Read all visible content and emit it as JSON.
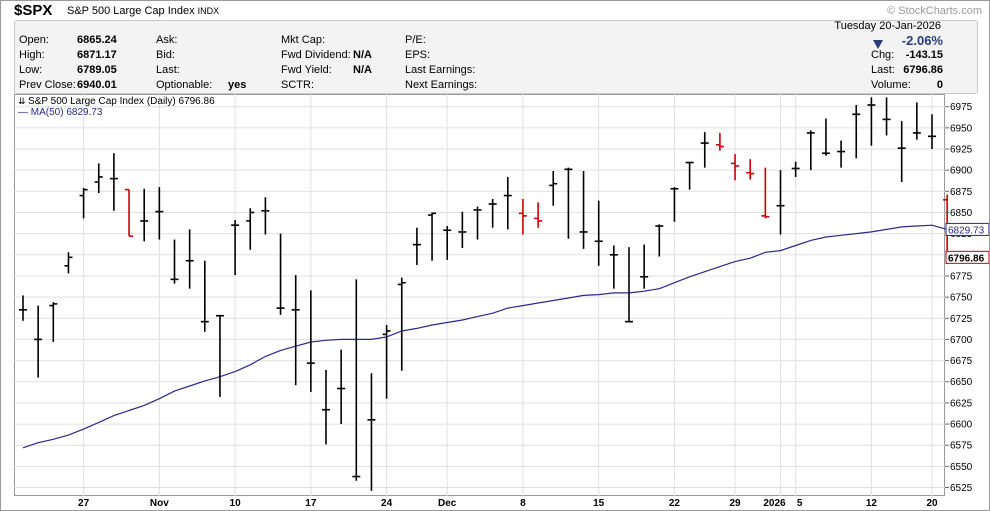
{
  "header": {
    "ticker": "$SPX",
    "company": "S&P 500 Large Cap Index",
    "exchange": "INDX",
    "watermark": "© StockCharts.com"
  },
  "info": {
    "open_label": "Open:",
    "open": "6865.24",
    "high_label": "High:",
    "high": "6871.17",
    "low_label": "Low:",
    "low": "6789.05",
    "prev_label": "Prev Close:",
    "prev": "6940.01",
    "ask_label": "Ask:",
    "bid_label": "Bid:",
    "last_label": "Last:",
    "optionable_label": "Optionable:",
    "optionable": "yes",
    "mktcap_label": "Mkt Cap:",
    "fwddiv_label": "Fwd Dividend:",
    "fwddiv": "N/A",
    "fwdyield_label": "Fwd Yield:",
    "fwdyield": "N/A",
    "sctr_label": "SCTR:",
    "pe_label": "P/E:",
    "eps_label": "EPS:",
    "lastearn_label": "Last Earnings:",
    "nextearn_label": "Next Earnings:",
    "date": "Tuesday  20-Jan-2026",
    "pct": "-2.06%",
    "chg_label": "Chg:",
    "chg": "-143.15",
    "last2_label": "Last:",
    "last2": "6796.86",
    "vol_label": "Volume:",
    "vol": "0"
  },
  "legend": {
    "main": "S&P 500 Large Cap Index (Daily) 6796.86",
    "ma": "MA(50) 6829.73"
  },
  "colors": {
    "up": "#000000",
    "down": "#cc0000",
    "ma": "#2a2a8a",
    "grid": "#e0e0e0"
  },
  "chart_data": {
    "type": "ohlc",
    "ylim": [
      6515,
      6990
    ],
    "y_ticks": [
      6525,
      6550,
      6575,
      6600,
      6625,
      6650,
      6675,
      6700,
      6725,
      6750,
      6775,
      6800,
      6825,
      6850,
      6875,
      6900,
      6925,
      6950,
      6975
    ],
    "x_ticks": [
      {
        "label": "27",
        "i": 4
      },
      {
        "label": "Nov",
        "i": 9
      },
      {
        "label": "10",
        "i": 14
      },
      {
        "label": "17",
        "i": 19
      },
      {
        "label": "24",
        "i": 24
      },
      {
        "label": "Dec",
        "i": 28
      },
      {
        "label": "8",
        "i": 33
      },
      {
        "label": "15",
        "i": 38
      },
      {
        "label": "22",
        "i": 43
      },
      {
        "label": "29",
        "i": 47
      },
      {
        "label": "2026",
        "i": 50
      },
      {
        "label": "5",
        "i": 51
      },
      {
        "label": "12",
        "i": 56
      },
      {
        "label": "20",
        "i": 60
      }
    ],
    "bars": [
      {
        "o": 6735,
        "h": 6752,
        "l": 6722,
        "c": 6735
      },
      {
        "o": 6700,
        "h": 6740,
        "l": 6655,
        "c": 6700
      },
      {
        "o": 6740,
        "h": 6744,
        "l": 6697,
        "c": 6742
      },
      {
        "o": 6787,
        "h": 6803,
        "l": 6778,
        "c": 6797
      },
      {
        "o": 6870,
        "h": 6879,
        "l": 6843,
        "c": 6877
      },
      {
        "o": 6886,
        "h": 6908,
        "l": 6873,
        "c": 6892
      },
      {
        "o": 6890,
        "h": 6920,
        "l": 6852,
        "c": 6890
      },
      {
        "o": 6877,
        "h": 6877,
        "l": 6822,
        "c": 6822
      },
      {
        "o": 6840,
        "h": 6878,
        "l": 6816,
        "c": 6840
      },
      {
        "o": 6851,
        "h": 6880,
        "l": 6818,
        "c": 6851
      },
      {
        "o": 6771,
        "h": 6818,
        "l": 6766,
        "c": 6771
      },
      {
        "o": 6793,
        "h": 6830,
        "l": 6760,
        "c": 6793
      },
      {
        "o": 6721,
        "h": 6793,
        "l": 6709,
        "c": 6721
      },
      {
        "o": 6728,
        "h": 6729,
        "l": 6632,
        "c": 6728
      },
      {
        "o": 6835,
        "h": 6841,
        "l": 6776,
        "c": 6835
      },
      {
        "o": 6840,
        "h": 6855,
        "l": 6806,
        "c": 6850
      },
      {
        "o": 6852,
        "h": 6868,
        "l": 6824,
        "c": 6852
      },
      {
        "o": 6737,
        "h": 6825,
        "l": 6729,
        "c": 6737
      },
      {
        "o": 6735,
        "h": 6776,
        "l": 6646,
        "c": 6735
      },
      {
        "o": 6672,
        "h": 6758,
        "l": 6638,
        "c": 6672
      },
      {
        "o": 6617,
        "h": 6664,
        "l": 6576,
        "c": 6617
      },
      {
        "o": 6642,
        "h": 6688,
        "l": 6600,
        "c": 6642
      },
      {
        "o": 6538,
        "h": 6771,
        "l": 6533,
        "c": 6538
      },
      {
        "o": 6605,
        "h": 6660,
        "l": 6521,
        "c": 6605
      },
      {
        "o": 6706,
        "h": 6717,
        "l": 6630,
        "c": 6710
      },
      {
        "o": 6765,
        "h": 6773,
        "l": 6663,
        "c": 6767
      },
      {
        "o": 6812,
        "h": 6832,
        "l": 6788,
        "c": 6812
      },
      {
        "o": 6847,
        "h": 6850,
        "l": 6793,
        "c": 6849
      },
      {
        "o": 6829,
        "h": 6834,
        "l": 6794,
        "c": 6829
      },
      {
        "o": 6827,
        "h": 6851,
        "l": 6808,
        "c": 6827
      },
      {
        "o": 6853,
        "h": 6857,
        "l": 6818,
        "c": 6853
      },
      {
        "o": 6860,
        "h": 6866,
        "l": 6832,
        "c": 6860
      },
      {
        "o": 6870,
        "h": 6892,
        "l": 6830,
        "c": 6870
      },
      {
        "o": 6849,
        "h": 6866,
        "l": 6824,
        "c": 6846
      },
      {
        "o": 6843,
        "h": 6862,
        "l": 6832,
        "c": 6840
      },
      {
        "o": 6882,
        "h": 6899,
        "l": 6858,
        "c": 6884
      },
      {
        "o": 6901,
        "h": 6903,
        "l": 6819,
        "c": 6901
      },
      {
        "o": 6827,
        "h": 6899,
        "l": 6807,
        "c": 6827
      },
      {
        "o": 6816,
        "h": 6864,
        "l": 6787,
        "c": 6816
      },
      {
        "o": 6800,
        "h": 6811,
        "l": 6760,
        "c": 6800
      },
      {
        "o": 6721,
        "h": 6809,
        "l": 6721,
        "c": 6721
      },
      {
        "o": 6774,
        "h": 6812,
        "l": 6760,
        "c": 6774
      },
      {
        "o": 6834,
        "h": 6836,
        "l": 6798,
        "c": 6834
      },
      {
        "o": 6878,
        "h": 6880,
        "l": 6839,
        "c": 6878
      },
      {
        "o": 6909,
        "h": 6910,
        "l": 6877,
        "c": 6909
      },
      {
        "o": 6932,
        "h": 6945,
        "l": 6903,
        "c": 6932
      },
      {
        "o": 6930,
        "h": 6944,
        "l": 6923,
        "c": 6928
      },
      {
        "o": 6908,
        "h": 6919,
        "l": 6888,
        "c": 6905
      },
      {
        "o": 6897,
        "h": 6913,
        "l": 6889,
        "c": 6896
      },
      {
        "o": 6846,
        "h": 6903,
        "l": 6843,
        "c": 6845
      },
      {
        "o": 6858,
        "h": 6900,
        "l": 6824,
        "c": 6858
      },
      {
        "o": 6902,
        "h": 6910,
        "l": 6892,
        "c": 6902
      },
      {
        "o": 6944,
        "h": 6947,
        "l": 6900,
        "c": 6944
      },
      {
        "o": 6920,
        "h": 6961,
        "l": 6917,
        "c": 6920
      },
      {
        "o": 6922,
        "h": 6935,
        "l": 6903,
        "c": 6922
      },
      {
        "o": 6966,
        "h": 6977,
        "l": 6914,
        "c": 6966
      },
      {
        "o": 6977,
        "h": 6986,
        "l": 6929,
        "c": 6977
      },
      {
        "o": 6960,
        "h": 6986,
        "l": 6941,
        "c": 6960
      },
      {
        "o": 6926,
        "h": 6958,
        "l": 6886,
        "c": 6926
      },
      {
        "o": 6944,
        "h": 6980,
        "l": 6936,
        "c": 6944
      },
      {
        "o": 6940,
        "h": 6966,
        "l": 6925,
        "c": 6940
      },
      {
        "o": 6865,
        "h": 6871,
        "l": 6789,
        "c": 6797
      }
    ],
    "ma50": [
      6572,
      6578,
      6582,
      6587,
      6594,
      6602,
      6610,
      6616,
      6622,
      6630,
      6639,
      6645,
      6651,
      6656,
      6662,
      6670,
      6680,
      6687,
      6692,
      6697,
      6699,
      6700,
      6700,
      6700,
      6703,
      6710,
      6713,
      6717,
      6720,
      6723,
      6727,
      6731,
      6737,
      6740,
      6743,
      6746,
      6749,
      6752,
      6753,
      6755,
      6755,
      6757,
      6760,
      6767,
      6774,
      6780,
      6786,
      6792,
      6796,
      6803,
      6805,
      6811,
      6817,
      6821,
      6823,
      6825,
      6827,
      6830,
      6833,
      6834,
      6835,
      6830
    ]
  }
}
